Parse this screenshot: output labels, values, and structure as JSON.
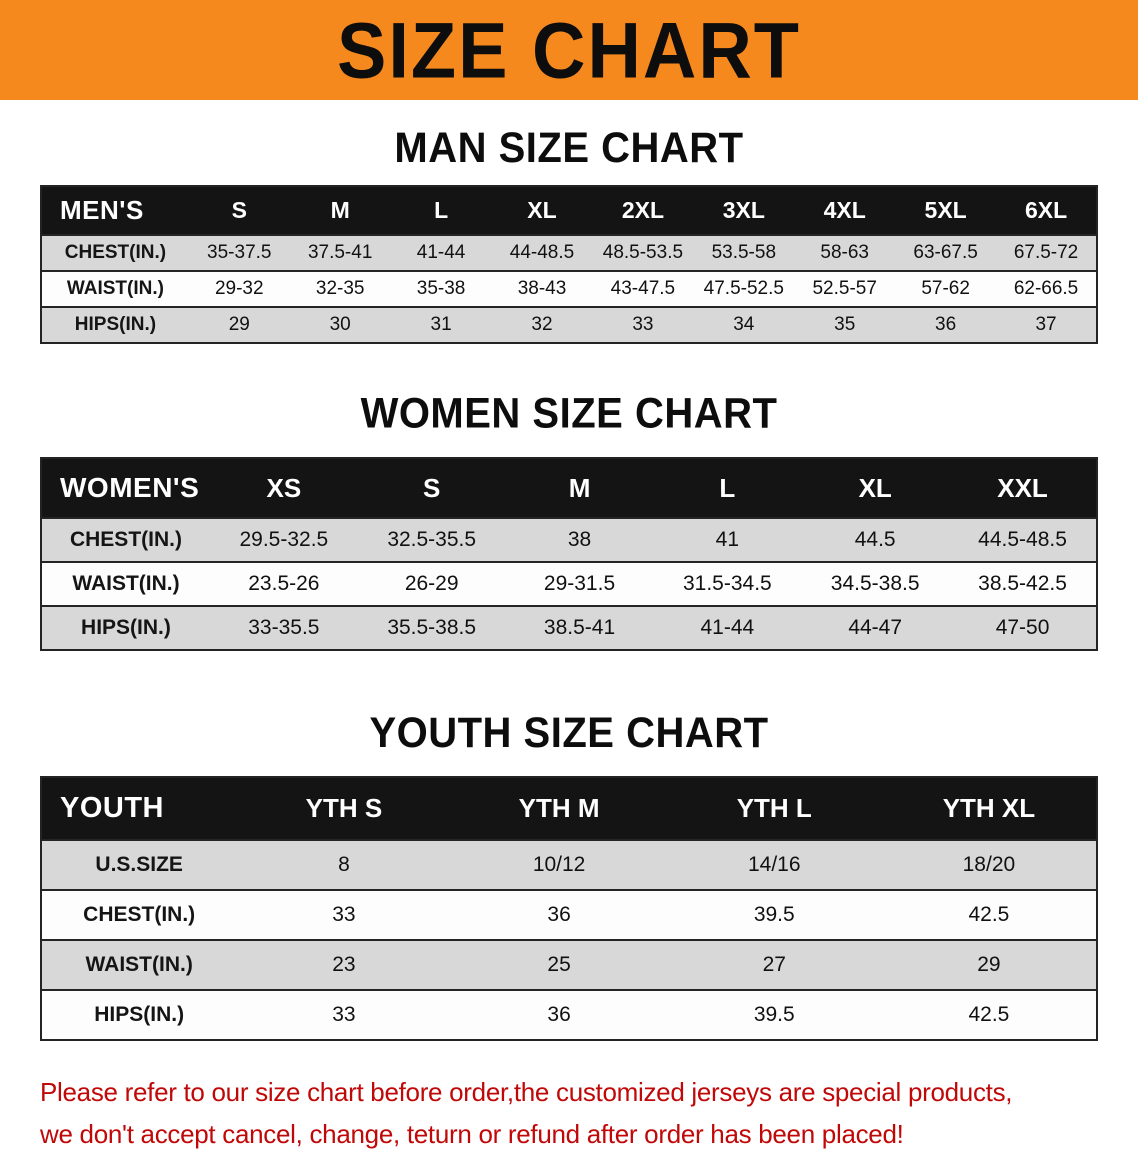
{
  "banner": {
    "title": "SIZE CHART"
  },
  "colors": {
    "banner_bg": "#F6891D",
    "table_header_bg": "#141414",
    "row_shade": "#D8D8D8",
    "disclaimer_text": "#C10808"
  },
  "sections": [
    {
      "heading": "MAN SIZE CHART",
      "table": {
        "header": [
          "MEN'S",
          "S",
          "M",
          "L",
          "XL",
          "2XL",
          "3XL",
          "4XL",
          "5XL",
          "6XL"
        ],
        "rows": [
          {
            "label": "CHEST(IN.)",
            "values": [
              "35-37.5",
              "37.5-41",
              "41-44",
              "44-48.5",
              "48.5-53.5",
              "53.5-58",
              "58-63",
              "63-67.5",
              "67.5-72"
            ]
          },
          {
            "label": "WAIST(IN.)",
            "values": [
              "29-32",
              "32-35",
              "35-38",
              "38-43",
              "43-47.5",
              "47.5-52.5",
              "52.5-57",
              "57-62",
              "62-66.5"
            ]
          },
          {
            "label": "HIPS(IN.)",
            "values": [
              "29",
              "30",
              "31",
              "32",
              "33",
              "34",
              "35",
              "36",
              "37"
            ]
          }
        ]
      }
    },
    {
      "heading": "WOMEN SIZE CHART",
      "table": {
        "header": [
          "WOMEN'S",
          "XS",
          "S",
          "M",
          "L",
          "XL",
          "XXL"
        ],
        "rows": [
          {
            "label": "CHEST(IN.)",
            "values": [
              "29.5-32.5",
              "32.5-35.5",
              "38",
              "41",
              "44.5",
              "44.5-48.5"
            ]
          },
          {
            "label": "WAIST(IN.)",
            "values": [
              "23.5-26",
              "26-29",
              "29-31.5",
              "31.5-34.5",
              "34.5-38.5",
              "38.5-42.5"
            ]
          },
          {
            "label": "HIPS(IN.)",
            "values": [
              "33-35.5",
              "35.5-38.5",
              "38.5-41",
              "41-44",
              "44-47",
              "47-50"
            ]
          }
        ]
      }
    },
    {
      "heading": "YOUTH SIZE CHART",
      "table": {
        "header": [
          "YOUTH",
          "YTH S",
          "YTH M",
          "YTH L",
          "YTH XL"
        ],
        "rows": [
          {
            "label": "U.S.SIZE",
            "values": [
              "8",
              "10/12",
              "14/16",
              "18/20"
            ]
          },
          {
            "label": "CHEST(IN.)",
            "values": [
              "33",
              "36",
              "39.5",
              "42.5"
            ]
          },
          {
            "label": "WAIST(IN.)",
            "values": [
              "23",
              "25",
              "27",
              "29"
            ]
          },
          {
            "label": "HIPS(IN.)",
            "values": [
              "33",
              "36",
              "39.5",
              "42.5"
            ]
          }
        ]
      }
    }
  ],
  "disclaimer": {
    "line1": "Please refer to our size chart before order,the customized jerseys are special products,",
    "line2": "we don't accept cancel, change, teturn or refund after order has been placed!"
  }
}
